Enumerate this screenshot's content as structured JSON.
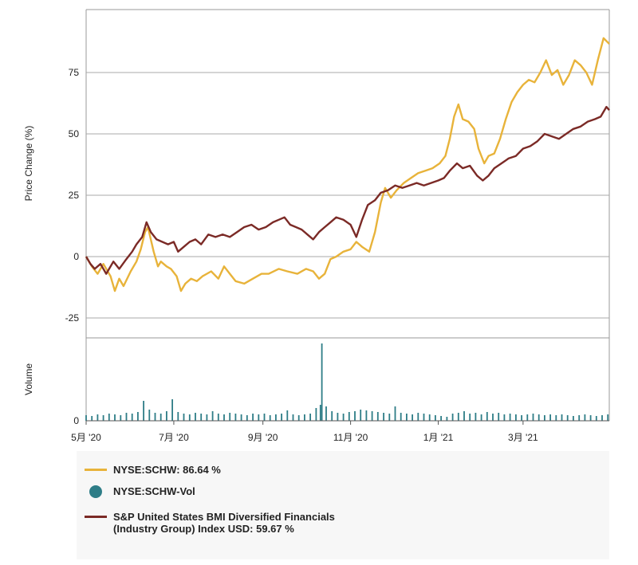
{
  "chart_data": {
    "type": "line",
    "y_axis_label": "Price Change (%)",
    "volume_axis_label": "Volume",
    "y_ticks": [
      75,
      50,
      25,
      0,
      -25
    ],
    "y_range": [
      -25,
      100
    ],
    "volume_ticks": [
      0
    ],
    "x_ticks": [
      "5月 '20",
      "7月 '20",
      "9月 '20",
      "11月 '20",
      "1月 '21",
      "3月 '21"
    ],
    "x_range": [
      "2020-05-01",
      "2021-04-30"
    ],
    "series": [
      {
        "name": "NYSE:SCHW",
        "legend_label": "NYSE:SCHW: 86.64 %",
        "color": "#e8b33a",
        "points": [
          [
            "2020-05-01",
            0
          ],
          [
            "2020-05-05",
            -4
          ],
          [
            "2020-05-09",
            -7
          ],
          [
            "2020-05-13",
            -3
          ],
          [
            "2020-05-18",
            -8
          ],
          [
            "2020-05-21",
            -14
          ],
          [
            "2020-05-24",
            -9
          ],
          [
            "2020-05-27",
            -12
          ],
          [
            "2020-06-01",
            -6
          ],
          [
            "2020-06-05",
            -2
          ],
          [
            "2020-06-08",
            3
          ],
          [
            "2020-06-11",
            10
          ],
          [
            "2020-06-13",
            12
          ],
          [
            "2020-06-17",
            2
          ],
          [
            "2020-06-20",
            -4
          ],
          [
            "2020-06-22",
            -2
          ],
          [
            "2020-06-26",
            -4
          ],
          [
            "2020-06-29",
            -5
          ],
          [
            "2020-07-03",
            -8
          ],
          [
            "2020-07-06",
            -14
          ],
          [
            "2020-07-09",
            -11
          ],
          [
            "2020-07-13",
            -9
          ],
          [
            "2020-07-17",
            -10
          ],
          [
            "2020-07-21",
            -8
          ],
          [
            "2020-07-27",
            -6
          ],
          [
            "2020-08-01",
            -9
          ],
          [
            "2020-08-05",
            -4
          ],
          [
            "2020-08-09",
            -7
          ],
          [
            "2020-08-13",
            -10
          ],
          [
            "2020-08-19",
            -11
          ],
          [
            "2020-08-25",
            -9
          ],
          [
            "2020-08-31",
            -7
          ],
          [
            "2020-09-05",
            -7
          ],
          [
            "2020-09-12",
            -5
          ],
          [
            "2020-09-18",
            -6
          ],
          [
            "2020-09-25",
            -7
          ],
          [
            "2020-10-01",
            -5
          ],
          [
            "2020-10-06",
            -6
          ],
          [
            "2020-10-10",
            -9
          ],
          [
            "2020-10-14",
            -7
          ],
          [
            "2020-10-18",
            -1
          ],
          [
            "2020-10-22",
            0
          ],
          [
            "2020-10-27",
            2
          ],
          [
            "2020-11-01",
            3
          ],
          [
            "2020-11-05",
            6
          ],
          [
            "2020-11-09",
            4
          ],
          [
            "2020-11-14",
            2
          ],
          [
            "2020-11-18",
            10
          ],
          [
            "2020-11-22",
            22
          ],
          [
            "2020-11-25",
            28
          ],
          [
            "2020-11-29",
            24
          ],
          [
            "2020-12-03",
            27
          ],
          [
            "2020-12-08",
            30
          ],
          [
            "2020-12-13",
            32
          ],
          [
            "2020-12-18",
            34
          ],
          [
            "2020-12-23",
            35
          ],
          [
            "2020-12-28",
            36
          ],
          [
            "2021-01-02",
            38
          ],
          [
            "2021-01-06",
            41
          ],
          [
            "2021-01-09",
            48
          ],
          [
            "2021-01-12",
            57
          ],
          [
            "2021-01-15",
            62
          ],
          [
            "2021-01-18",
            56
          ],
          [
            "2021-01-22",
            55
          ],
          [
            "2021-01-26",
            52
          ],
          [
            "2021-01-29",
            44
          ],
          [
            "2021-02-02",
            38
          ],
          [
            "2021-02-05",
            41
          ],
          [
            "2021-02-09",
            42
          ],
          [
            "2021-02-13",
            48
          ],
          [
            "2021-02-17",
            56
          ],
          [
            "2021-02-21",
            63
          ],
          [
            "2021-02-25",
            67
          ],
          [
            "2021-03-01",
            70
          ],
          [
            "2021-03-05",
            72
          ],
          [
            "2021-03-09",
            71
          ],
          [
            "2021-03-13",
            75
          ],
          [
            "2021-03-17",
            80
          ],
          [
            "2021-03-21",
            74
          ],
          [
            "2021-03-25",
            76
          ],
          [
            "2021-03-29",
            70
          ],
          [
            "2021-04-02",
            74
          ],
          [
            "2021-04-06",
            80
          ],
          [
            "2021-04-10",
            78
          ],
          [
            "2021-04-14",
            75
          ],
          [
            "2021-04-18",
            70
          ],
          [
            "2021-04-22",
            80
          ],
          [
            "2021-04-26",
            89
          ],
          [
            "2021-04-30",
            86.64
          ]
        ]
      },
      {
        "name": "NYSE:SCHW-Vol",
        "legend_label": "NYSE:SCHW-Vol",
        "color": "#2e7d87",
        "volume_max": 100,
        "volume": [
          [
            "2020-05-01",
            7
          ],
          [
            "2020-05-05",
            6
          ],
          [
            "2020-05-09",
            8
          ],
          [
            "2020-05-13",
            7
          ],
          [
            "2020-05-17",
            9
          ],
          [
            "2020-05-21",
            8
          ],
          [
            "2020-05-25",
            7
          ],
          [
            "2020-05-29",
            10
          ],
          [
            "2020-06-02",
            9
          ],
          [
            "2020-06-06",
            11
          ],
          [
            "2020-06-10",
            25
          ],
          [
            "2020-06-14",
            14
          ],
          [
            "2020-06-18",
            10
          ],
          [
            "2020-06-22",
            9
          ],
          [
            "2020-06-26",
            12
          ],
          [
            "2020-06-30",
            27
          ],
          [
            "2020-07-04",
            11
          ],
          [
            "2020-07-08",
            9
          ],
          [
            "2020-07-12",
            8
          ],
          [
            "2020-07-16",
            10
          ],
          [
            "2020-07-20",
            9
          ],
          [
            "2020-07-24",
            8
          ],
          [
            "2020-07-28",
            12
          ],
          [
            "2020-08-01",
            9
          ],
          [
            "2020-08-05",
            8
          ],
          [
            "2020-08-09",
            10
          ],
          [
            "2020-08-13",
            9
          ],
          [
            "2020-08-17",
            8
          ],
          [
            "2020-08-21",
            7
          ],
          [
            "2020-08-25",
            9
          ],
          [
            "2020-08-29",
            8
          ],
          [
            "2020-09-02",
            9
          ],
          [
            "2020-09-06",
            7
          ],
          [
            "2020-09-10",
            8
          ],
          [
            "2020-09-14",
            9
          ],
          [
            "2020-09-18",
            13
          ],
          [
            "2020-09-22",
            8
          ],
          [
            "2020-09-26",
            7
          ],
          [
            "2020-09-30",
            8
          ],
          [
            "2020-10-04",
            9
          ],
          [
            "2020-10-08",
            16
          ],
          [
            "2020-10-11",
            20
          ],
          [
            "2020-10-12",
            97
          ],
          [
            "2020-10-15",
            18
          ],
          [
            "2020-10-19",
            12
          ],
          [
            "2020-10-23",
            10
          ],
          [
            "2020-10-27",
            9
          ],
          [
            "2020-10-31",
            11
          ],
          [
            "2020-11-04",
            12
          ],
          [
            "2020-11-08",
            14
          ],
          [
            "2020-11-12",
            13
          ],
          [
            "2020-11-16",
            12
          ],
          [
            "2020-11-20",
            11
          ],
          [
            "2020-11-24",
            10
          ],
          [
            "2020-11-28",
            9
          ],
          [
            "2020-12-02",
            18
          ],
          [
            "2020-12-06",
            10
          ],
          [
            "2020-12-10",
            9
          ],
          [
            "2020-12-14",
            8
          ],
          [
            "2020-12-18",
            10
          ],
          [
            "2020-12-22",
            9
          ],
          [
            "2020-12-26",
            8
          ],
          [
            "2020-12-30",
            7
          ],
          [
            "2021-01-03",
            6
          ],
          [
            "2021-01-07",
            5
          ],
          [
            "2021-01-11",
            9
          ],
          [
            "2021-01-15",
            10
          ],
          [
            "2021-01-19",
            12
          ],
          [
            "2021-01-23",
            9
          ],
          [
            "2021-01-27",
            10
          ],
          [
            "2021-01-31",
            8
          ],
          [
            "2021-02-04",
            11
          ],
          [
            "2021-02-08",
            9
          ],
          [
            "2021-02-12",
            10
          ],
          [
            "2021-02-16",
            8
          ],
          [
            "2021-02-20",
            9
          ],
          [
            "2021-02-24",
            8
          ],
          [
            "2021-02-28",
            7
          ],
          [
            "2021-03-04",
            8
          ],
          [
            "2021-03-08",
            9
          ],
          [
            "2021-03-12",
            8
          ],
          [
            "2021-03-16",
            7
          ],
          [
            "2021-03-20",
            8
          ],
          [
            "2021-03-24",
            7
          ],
          [
            "2021-03-28",
            8
          ],
          [
            "2021-04-01",
            7
          ],
          [
            "2021-04-05",
            6
          ],
          [
            "2021-04-09",
            7
          ],
          [
            "2021-04-13",
            8
          ],
          [
            "2021-04-17",
            7
          ],
          [
            "2021-04-21",
            6
          ],
          [
            "2021-04-25",
            7
          ],
          [
            "2021-04-29",
            8
          ]
        ]
      },
      {
        "name": "S&P United States BMI Diversified Financials (Industry Group) Index USD",
        "legend_label": "S&P United States BMI Diversified Financials (Industry Group) Index USD: 59.67 %",
        "color": "#7b2a26",
        "points": [
          [
            "2020-05-01",
            0
          ],
          [
            "2020-05-04",
            -3
          ],
          [
            "2020-05-07",
            -5
          ],
          [
            "2020-05-11",
            -3
          ],
          [
            "2020-05-15",
            -7
          ],
          [
            "2020-05-20",
            -2
          ],
          [
            "2020-05-24",
            -5
          ],
          [
            "2020-05-29",
            -1
          ],
          [
            "2020-06-02",
            2
          ],
          [
            "2020-06-05",
            5
          ],
          [
            "2020-06-09",
            8
          ],
          [
            "2020-06-12",
            14
          ],
          [
            "2020-06-15",
            10
          ],
          [
            "2020-06-19",
            7
          ],
          [
            "2020-06-23",
            6
          ],
          [
            "2020-06-27",
            5
          ],
          [
            "2020-07-01",
            6
          ],
          [
            "2020-07-04",
            2
          ],
          [
            "2020-07-08",
            4
          ],
          [
            "2020-07-12",
            6
          ],
          [
            "2020-07-16",
            7
          ],
          [
            "2020-07-20",
            5
          ],
          [
            "2020-07-25",
            9
          ],
          [
            "2020-07-30",
            8
          ],
          [
            "2020-08-04",
            9
          ],
          [
            "2020-08-09",
            8
          ],
          [
            "2020-08-14",
            10
          ],
          [
            "2020-08-19",
            12
          ],
          [
            "2020-08-24",
            13
          ],
          [
            "2020-08-29",
            11
          ],
          [
            "2020-09-03",
            12
          ],
          [
            "2020-09-08",
            14
          ],
          [
            "2020-09-12",
            15
          ],
          [
            "2020-09-16",
            16
          ],
          [
            "2020-09-20",
            13
          ],
          [
            "2020-09-24",
            12
          ],
          [
            "2020-09-28",
            11
          ],
          [
            "2020-10-02",
            9
          ],
          [
            "2020-10-06",
            7
          ],
          [
            "2020-10-10",
            10
          ],
          [
            "2020-10-14",
            12
          ],
          [
            "2020-10-18",
            14
          ],
          [
            "2020-10-22",
            16
          ],
          [
            "2020-10-27",
            15
          ],
          [
            "2020-11-01",
            13
          ],
          [
            "2020-11-05",
            8
          ],
          [
            "2020-11-09",
            15
          ],
          [
            "2020-11-13",
            21
          ],
          [
            "2020-11-18",
            23
          ],
          [
            "2020-11-22",
            26
          ],
          [
            "2020-11-27",
            27
          ],
          [
            "2020-12-02",
            29
          ],
          [
            "2020-12-07",
            28
          ],
          [
            "2020-12-12",
            29
          ],
          [
            "2020-12-17",
            30
          ],
          [
            "2020-12-22",
            29
          ],
          [
            "2020-12-27",
            30
          ],
          [
            "2021-01-01",
            31
          ],
          [
            "2021-01-05",
            32
          ],
          [
            "2021-01-09",
            35
          ],
          [
            "2021-01-14",
            38
          ],
          [
            "2021-01-18",
            36
          ],
          [
            "2021-01-23",
            37
          ],
          [
            "2021-01-28",
            33
          ],
          [
            "2021-02-01",
            31
          ],
          [
            "2021-02-05",
            33
          ],
          [
            "2021-02-09",
            36
          ],
          [
            "2021-02-14",
            38
          ],
          [
            "2021-02-19",
            40
          ],
          [
            "2021-02-24",
            41
          ],
          [
            "2021-03-01",
            44
          ],
          [
            "2021-03-06",
            45
          ],
          [
            "2021-03-11",
            47
          ],
          [
            "2021-03-16",
            50
          ],
          [
            "2021-03-21",
            49
          ],
          [
            "2021-03-26",
            48
          ],
          [
            "2021-03-31",
            50
          ],
          [
            "2021-04-05",
            52
          ],
          [
            "2021-04-10",
            53
          ],
          [
            "2021-04-15",
            55
          ],
          [
            "2021-04-20",
            56
          ],
          [
            "2021-04-24",
            57
          ],
          [
            "2021-04-28",
            61
          ],
          [
            "2021-04-30",
            59.67
          ]
        ]
      }
    ],
    "grid": true,
    "legend_position": "bottom-left"
  }
}
